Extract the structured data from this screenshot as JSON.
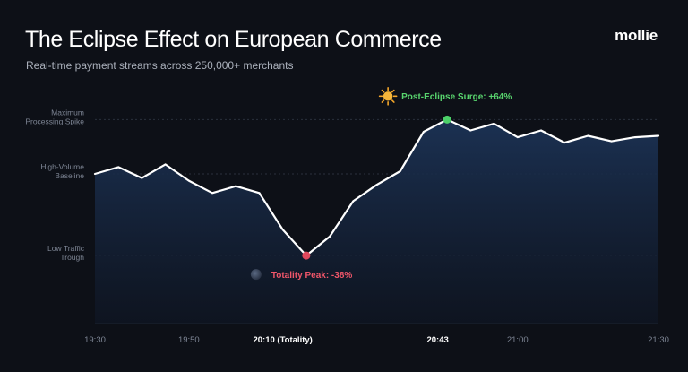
{
  "header": {
    "title": "The Eclipse Effect on European Commerce",
    "subtitle": "Real-time payment streams across 250,000+ merchants",
    "brand": "mollie"
  },
  "colors": {
    "background": "#0d1017",
    "line": "#ffffff",
    "area_top": "#1c3356",
    "trough": "#e0485c",
    "surge": "#4cd169",
    "surge_text": "#58d46e",
    "trough_text": "#f0566a",
    "axis_label": "#7d8594",
    "tick_label": "#7d8594"
  },
  "chart_data": {
    "type": "area",
    "title": "The Eclipse Effect on European Commerce",
    "subtitle": "Real-time payment streams across 250,000+ merchants",
    "xlabel": "",
    "ylabel": "",
    "y_levels": [
      {
        "label_lines": [
          "Maximum",
          "Processing Spike"
        ],
        "value": 100
      },
      {
        "label_lines": [
          "High-Volume",
          "Baseline"
        ],
        "value": 60
      },
      {
        "label_lines": [
          "Low Traffic",
          "Trough"
        ],
        "value": 0
      }
    ],
    "ylim": [
      -50,
      118
    ],
    "xlim": [
      0,
      120
    ],
    "x_ticks": [
      {
        "x": 0,
        "label": "19:30",
        "bold": false
      },
      {
        "x": 20,
        "label": "19:50",
        "bold": false
      },
      {
        "x": 40,
        "label": "20:10 (Totality)",
        "bold": true
      },
      {
        "x": 73,
        "label": "20:43",
        "bold": true
      },
      {
        "x": 90,
        "label": "21:00",
        "bold": false
      },
      {
        "x": 120,
        "label": "21:30",
        "bold": false
      }
    ],
    "series": [
      {
        "x": [
          0,
          5,
          10,
          15,
          20,
          25,
          30,
          35,
          40,
          45,
          50,
          55,
          60,
          65,
          70,
          75,
          80,
          85,
          90,
          95,
          100,
          105,
          110,
          115,
          120
        ],
        "values": [
          60,
          65,
          57,
          67,
          55,
          46,
          51,
          46,
          19,
          0,
          14,
          40,
          52,
          62,
          91,
          100,
          92,
          97,
          87,
          92,
          83,
          88,
          84,
          87,
          88
        ]
      }
    ],
    "annotations": [
      {
        "text": "Totality Peak: -38%",
        "x": 45,
        "y": 0,
        "kind": "trough",
        "icon": "moon-icon"
      },
      {
        "text": "Post-Eclipse Surge: +64%",
        "x": 75,
        "y": 100,
        "kind": "surge",
        "icon": "sun-icon"
      }
    ],
    "grid": true,
    "legend": "none"
  }
}
